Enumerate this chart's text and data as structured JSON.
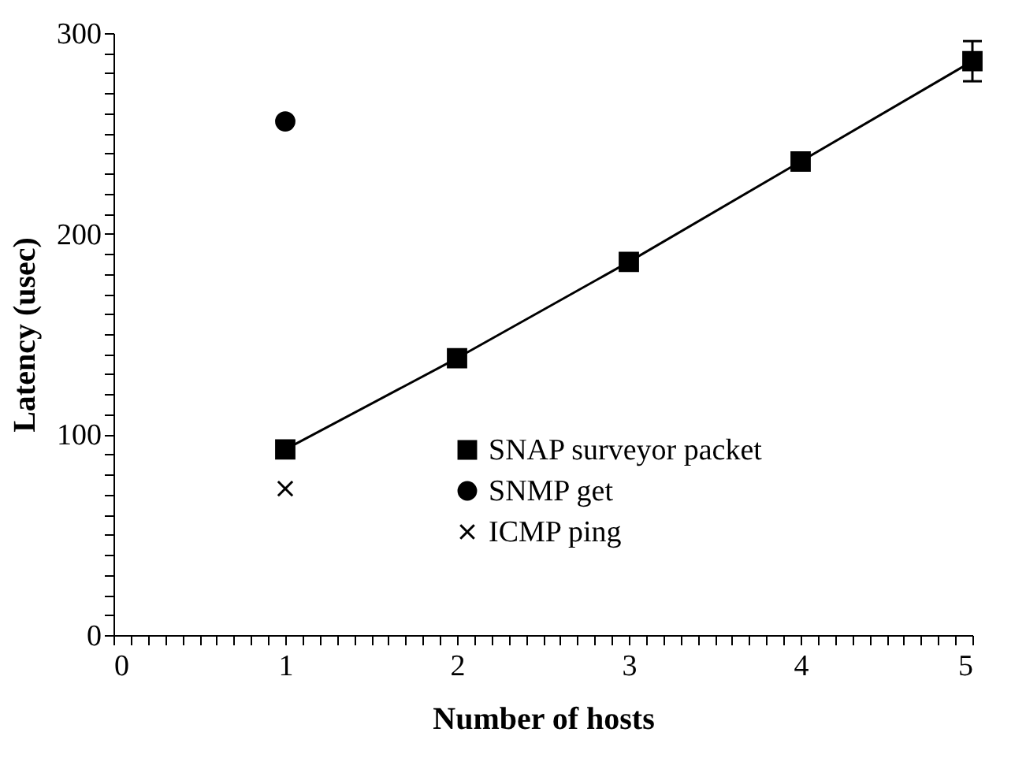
{
  "chart_data": {
    "type": "line",
    "xlabel": "Number of hosts",
    "ylabel": "Latency (usec)",
    "xlim": [
      0,
      5
    ],
    "ylim": [
      0,
      300
    ],
    "xticks": [
      0,
      {
        "value": 0.1,
        "label": null
      },
      {
        "value": 0.2,
        "label": null
      },
      {
        "value": 0.3,
        "label": null
      },
      {
        "value": 0.4,
        "label": null
      },
      {
        "value": 0.5,
        "label": null
      },
      {
        "value": 0.6,
        "label": null
      },
      {
        "value": 0.7,
        "label": null
      },
      {
        "value": 0.8,
        "label": null
      },
      {
        "value": 0.9,
        "label": null
      },
      1,
      {
        "value": 1.1,
        "label": null
      },
      {
        "value": 1.2,
        "label": null
      },
      {
        "value": 1.3,
        "label": null
      },
      {
        "value": 1.4,
        "label": null
      },
      {
        "value": 1.5,
        "label": null
      },
      {
        "value": 1.6,
        "label": null
      },
      {
        "value": 1.7,
        "label": null
      },
      {
        "value": 1.8,
        "label": null
      },
      {
        "value": 1.9,
        "label": null
      },
      2,
      {
        "value": 2.1,
        "label": null
      },
      {
        "value": 2.2,
        "label": null
      },
      {
        "value": 2.3,
        "label": null
      },
      {
        "value": 2.4,
        "label": null
      },
      {
        "value": 2.5,
        "label": null
      },
      {
        "value": 2.6,
        "label": null
      },
      {
        "value": 2.7,
        "label": null
      },
      {
        "value": 2.8,
        "label": null
      },
      {
        "value": 2.9,
        "label": null
      },
      3,
      {
        "value": 3.1,
        "label": null
      },
      {
        "value": 3.2,
        "label": null
      },
      {
        "value": 3.3,
        "label": null
      },
      {
        "value": 3.4,
        "label": null
      },
      {
        "value": 3.5,
        "label": null
      },
      {
        "value": 3.6,
        "label": null
      },
      {
        "value": 3.7,
        "label": null
      },
      {
        "value": 3.8,
        "label": null
      },
      {
        "value": 3.9,
        "label": null
      },
      4,
      {
        "value": 4.1,
        "label": null
      },
      {
        "value": 4.2,
        "label": null
      },
      {
        "value": 4.3,
        "label": null
      },
      {
        "value": 4.4,
        "label": null
      },
      {
        "value": 4.5,
        "label": null
      },
      {
        "value": 4.6,
        "label": null
      },
      {
        "value": 4.7,
        "label": null
      },
      {
        "value": 4.8,
        "label": null
      },
      {
        "value": 4.9,
        "label": null
      },
      5
    ],
    "yticks": [
      0,
      {
        "value": 10,
        "label": null
      },
      {
        "value": 20,
        "label": null
      },
      {
        "value": 30,
        "label": null
      },
      {
        "value": 40,
        "label": null
      },
      {
        "value": 50,
        "label": null
      },
      {
        "value": 60,
        "label": null
      },
      {
        "value": 70,
        "label": null
      },
      {
        "value": 80,
        "label": null
      },
      {
        "value": 90,
        "label": null
      },
      100,
      {
        "value": 110,
        "label": null
      },
      {
        "value": 120,
        "label": null
      },
      {
        "value": 130,
        "label": null
      },
      {
        "value": 140,
        "label": null
      },
      {
        "value": 150,
        "label": null
      },
      {
        "value": 160,
        "label": null
      },
      {
        "value": 170,
        "label": null
      },
      {
        "value": 180,
        "label": null
      },
      {
        "value": 190,
        "label": null
      },
      200,
      {
        "value": 210,
        "label": null
      },
      {
        "value": 220,
        "label": null
      },
      {
        "value": 230,
        "label": null
      },
      {
        "value": 240,
        "label": null
      },
      {
        "value": 250,
        "label": null
      },
      {
        "value": 260,
        "label": null
      },
      {
        "value": 270,
        "label": null
      },
      {
        "value": 280,
        "label": null
      },
      {
        "value": 290,
        "label": null
      },
      300
    ],
    "grid": false,
    "legend": "bottom right",
    "line_style": "solid",
    "series": [
      {
        "name": "SNAP surveyor packet",
        "marker": "square",
        "color": "#000000",
        "x": [
          1,
          2,
          3,
          4,
          5
        ],
        "values": [
          92.5,
          138,
          186,
          236,
          286
        ],
        "errors": [
          null,
          null,
          null,
          null,
          10
        ]
      },
      {
        "name": "SNMP get",
        "type": "scatter",
        "marker": "circle",
        "color": "#000000",
        "x": [
          1
        ],
        "values": [
          256
        ]
      },
      {
        "name": "ICMP ping",
        "type": "scatter",
        "marker": "cross",
        "color": "#000000",
        "x": [
          1
        ],
        "values": [
          73
        ]
      }
    ]
  }
}
